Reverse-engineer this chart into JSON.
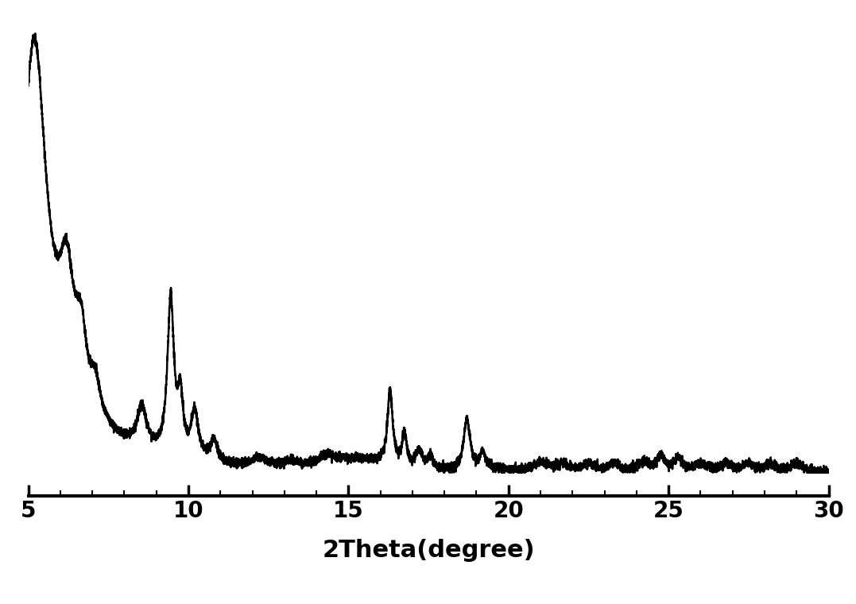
{
  "title": "",
  "xlabel": "2Theta(degree)",
  "xlabel_fontsize": 22,
  "xlabel_fontweight": "bold",
  "xlim": [
    5,
    30
  ],
  "ylim": [
    0,
    1.0
  ],
  "xticks": [
    5,
    10,
    15,
    20,
    25,
    30
  ],
  "tick_fontsize": 20,
  "tick_fontweight": "bold",
  "line_color": "#000000",
  "line_width": 1.8,
  "background_color": "#ffffff",
  "fig_width": 10.77,
  "fig_height": 7.6,
  "dpi": 100
}
